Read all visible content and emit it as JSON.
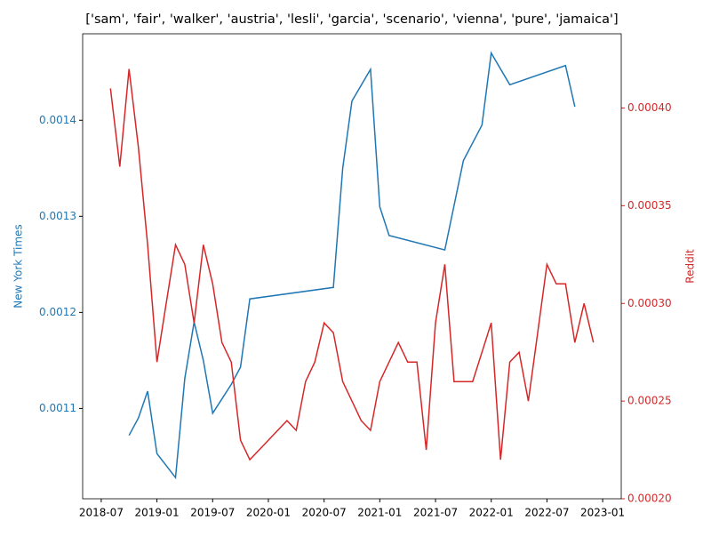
{
  "chart_data": {
    "type": "line",
    "title": "['sam', 'fair', 'walker', 'austria', 'lesli', 'garcia', 'scenario', 'vienna', 'pure', 'jamaica']",
    "xlim": [
      "2018-05",
      "2023-03"
    ],
    "xticks": [
      "2018-07",
      "2019-01",
      "2019-07",
      "2020-01",
      "2020-07",
      "2021-01",
      "2021-07",
      "2022-01",
      "2022-07",
      "2023-01"
    ],
    "ylim": [
      0.001006,
      0.00149
    ],
    "yticks": [
      0.0011,
      0.0012,
      0.0013,
      0.0014
    ],
    "y2lim": [
      0.0002,
      0.000438
    ],
    "y2ticks": [
      {
        "value": 0.0002,
        "label": "0.00020"
      },
      {
        "value": 0.00025,
        "label": "0.00025"
      },
      {
        "value": 0.0003,
        "label": "0.00030"
      },
      {
        "value": 0.00035,
        "label": "0.00035"
      },
      {
        "value": 0.0004,
        "label": "0.00040"
      }
    ],
    "series": [
      {
        "name": "New York Times",
        "color": "#1f77b4",
        "x": [
          "2018-10",
          "2018-11",
          "2018-12",
          "2019-01",
          "2019-03",
          "2019-04",
          "2019-05",
          "2019-06",
          "2019-07",
          "2019-09",
          "2019-10",
          "2019-11",
          "2020-08",
          "2020-09",
          "2020-10",
          "2020-12",
          "2021-01",
          "2021-02",
          "2021-08",
          "2021-10",
          "2021-12",
          "2022-01",
          "2022-03",
          "2022-09",
          "2022-10"
        ],
        "values": [
          0.001072,
          0.00109,
          0.001118,
          0.001053,
          0.001028,
          0.001131,
          0.00119,
          0.00115,
          0.001095,
          0.001125,
          0.001143,
          0.001214,
          0.001226,
          0.00135,
          0.00142,
          0.001453,
          0.00131,
          0.00128,
          0.001265,
          0.001358,
          0.001395,
          0.00147,
          0.001437,
          0.001457,
          0.001414
        ]
      },
      {
        "name": "Reddit",
        "color": "#d62728",
        "axis": "y2",
        "x": [
          "2018-08",
          "2018-09",
          "2018-10",
          "2018-11",
          "2018-12",
          "2019-01",
          "2019-02",
          "2019-03",
          "2019-04",
          "2019-05",
          "2019-06",
          "2019-07",
          "2019-08",
          "2019-09",
          "2019-10",
          "2019-11",
          "2019-12",
          "2020-01",
          "2020-02",
          "2020-03",
          "2020-04",
          "2020-05",
          "2020-06",
          "2020-07",
          "2020-08",
          "2020-09",
          "2020-10",
          "2020-11",
          "2020-12",
          "2021-01",
          "2021-02",
          "2021-03",
          "2021-04",
          "2021-05",
          "2021-06",
          "2021-07",
          "2021-08",
          "2021-09",
          "2021-10",
          "2021-11",
          "2021-12",
          "2022-01",
          "2022-02",
          "2022-03",
          "2022-04",
          "2022-05",
          "2022-06",
          "2022-07",
          "2022-08",
          "2022-09",
          "2022-10",
          "2022-11",
          "2022-12"
        ],
        "values": [
          0.00041,
          0.00037,
          0.00042,
          0.00038,
          0.00033,
          0.00027,
          0.0003,
          0.00033,
          0.00032,
          0.00029,
          0.00033,
          0.00031,
          0.00028,
          0.00027,
          0.00023,
          0.00022,
          0.000225,
          0.00023,
          0.000235,
          0.00024,
          0.000235,
          0.00026,
          0.00027,
          0.00029,
          0.000285,
          0.00026,
          0.00025,
          0.00024,
          0.000235,
          0.00026,
          0.00027,
          0.00028,
          0.00027,
          0.00027,
          0.000225,
          0.00029,
          0.00032,
          0.00026,
          0.00026,
          0.00026,
          0.000275,
          0.00029,
          0.00022,
          0.00027,
          0.000275,
          0.00025,
          0.000285,
          0.00032,
          0.00031,
          0.00031,
          0.00028,
          0.0003,
          0.00028
        ]
      }
    ]
  }
}
